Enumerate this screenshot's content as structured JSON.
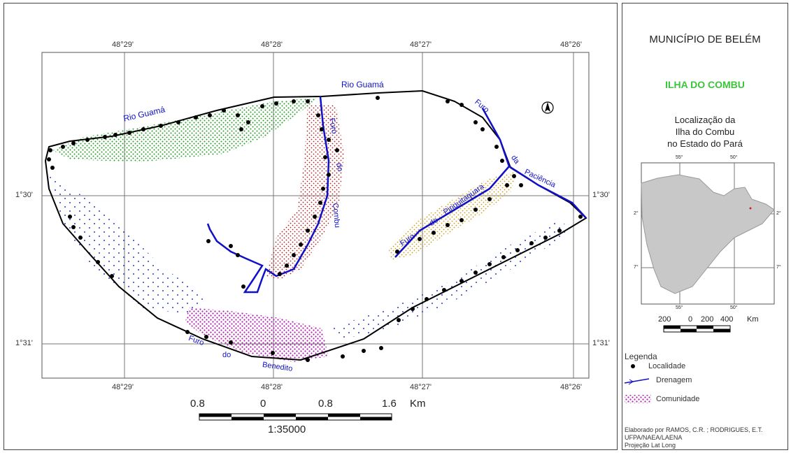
{
  "side": {
    "title": "MUNICÍPIO DE BELÉM",
    "subtitle": "ILHA DO COMBU",
    "location_line1": "Localização da",
    "location_line2": "Ilha do Combu",
    "location_line3": "no Estado do Pará",
    "inset_ticks": {
      "top_left": "55°",
      "top_right": "50°",
      "bottom_left": "55°",
      "bottom_right": "50°",
      "left_top": "2°",
      "left_bottom": "7°",
      "right_top": "2°",
      "right_bottom": "7°"
    },
    "inset_scale": [
      "200",
      "0",
      "200",
      "400",
      "Km"
    ],
    "legend_title": "Legenda",
    "legend_items": [
      "Localidade",
      "Drenagem",
      "Comunidade"
    ],
    "credits": [
      "Elaborado por RAMOS, C.R. ; RODRIGUES, E.T.",
      "UFPA/NAEA/LAENA",
      "Projeção Lat Long"
    ]
  },
  "map": {
    "top_longitudes": [
      "48°29'",
      "48°28'",
      "48°27'",
      "48°26'"
    ],
    "bottom_longitudes": [
      "48°29'",
      "48°28'",
      "48°27'",
      "48°26'"
    ],
    "left_latitudes": [
      "1°30'",
      "1°31'"
    ],
    "right_latitudes": [
      "1°30'",
      "1°31'"
    ],
    "labels": {
      "rio_guama_top": "Rio Guamá",
      "rio_guama_left": "Rio Guamá",
      "furo_combu_1": "Furo",
      "furo_combu_2": "do",
      "furo_combu_3": "Combu",
      "furo_paciencia_1": "Furo",
      "furo_paciencia_2": "da",
      "furo_paciencia_3": "Paciência",
      "pirajucara_1": "Furo",
      "pirajucara_2": "do",
      "pirajucara_3": "Piriquitaquara",
      "benedito_1": "Furo",
      "benedito_2": "do",
      "benedito_3": "Benedito"
    },
    "scale_labels": [
      "0.8",
      "0",
      "0.8",
      "1.6",
      "Km"
    ],
    "scale_ratio": "1:35000"
  },
  "colors": {
    "river": "#1010c8",
    "outline": "#000000",
    "green_community": "#2a9a2a",
    "red_community": "#b02020",
    "yellow_community": "#c8a020",
    "magenta_community": "#b020b0",
    "blue_community": "#2040d0",
    "state_fill": "#c8c8c8"
  }
}
